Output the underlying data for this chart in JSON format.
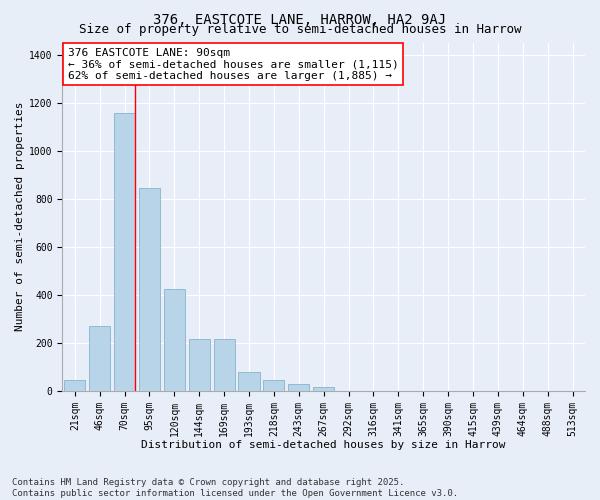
{
  "title": "376, EASTCOTE LANE, HARROW, HA2 9AJ",
  "subtitle": "Size of property relative to semi-detached houses in Harrow",
  "xlabel": "Distribution of semi-detached houses by size in Harrow",
  "ylabel": "Number of semi-detached properties",
  "categories": [
    "21sqm",
    "46sqm",
    "70sqm",
    "95sqm",
    "120sqm",
    "144sqm",
    "169sqm",
    "193sqm",
    "218sqm",
    "243sqm",
    "267sqm",
    "292sqm",
    "316sqm",
    "341sqm",
    "365sqm",
    "390sqm",
    "415sqm",
    "439sqm",
    "464sqm",
    "488sqm",
    "513sqm"
  ],
  "values": [
    45,
    270,
    1155,
    845,
    425,
    215,
    215,
    80,
    45,
    30,
    18,
    0,
    0,
    0,
    0,
    0,
    0,
    0,
    0,
    0,
    0
  ],
  "bar_color": "#b8d4e8",
  "bar_edge_color": "#7aaac8",
  "vline_color": "red",
  "vline_x_index": 2,
  "annotation_text": "376 EASTCOTE LANE: 90sqm\n← 36% of semi-detached houses are smaller (1,115)\n62% of semi-detached houses are larger (1,885) →",
  "annotation_box_color": "white",
  "annotation_box_edge": "red",
  "ylim": [
    0,
    1450
  ],
  "yticks": [
    0,
    200,
    400,
    600,
    800,
    1000,
    1200,
    1400
  ],
  "footer_text": "Contains HM Land Registry data © Crown copyright and database right 2025.\nContains public sector information licensed under the Open Government Licence v3.0.",
  "bg_color": "#e8eef8",
  "plot_bg_color": "#e8eef8",
  "grid_color": "white",
  "title_fontsize": 10,
  "subtitle_fontsize": 9,
  "axis_label_fontsize": 8,
  "tick_fontsize": 7,
  "annotation_fontsize": 8,
  "footer_fontsize": 6.5
}
